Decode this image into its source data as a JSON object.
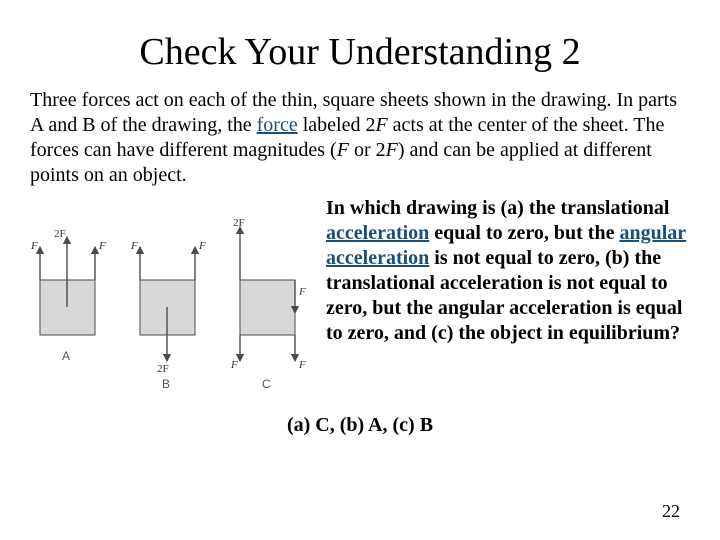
{
  "title": "Check Your Understanding 2",
  "intro_html": "Three forces act on each of the thin, square sheets shown in the drawing. In parts A and B of the drawing, the <span class='linked'>force</span> labeled 2<i>F</i> acts at the center of the sheet. The forces can have different magnitudes (<i>F</i> or 2<i>F</i>) and can be applied at different points on an object.",
  "question_html": "In which drawing is (a) the translational <span class='linked'>acceleration</span> equal to zero, but the <span class='linked'>angular acceleration</span> is not equal to zero, (b) the translational acceleration is not equal to zero, but the angular acceleration is equal to zero, and (c) the object in equilibrium?",
  "answers": "(a) C,  (b) A,  (c) B",
  "page_number": "22",
  "diagram": {
    "labels": {
      "F": "F",
      "2F": "2F",
      "A": "A",
      "B": "B",
      "C": "C"
    },
    "colors": {
      "square_fill": "#d8d8d8",
      "stroke": "#4a4a4a",
      "text": "#333333"
    }
  }
}
